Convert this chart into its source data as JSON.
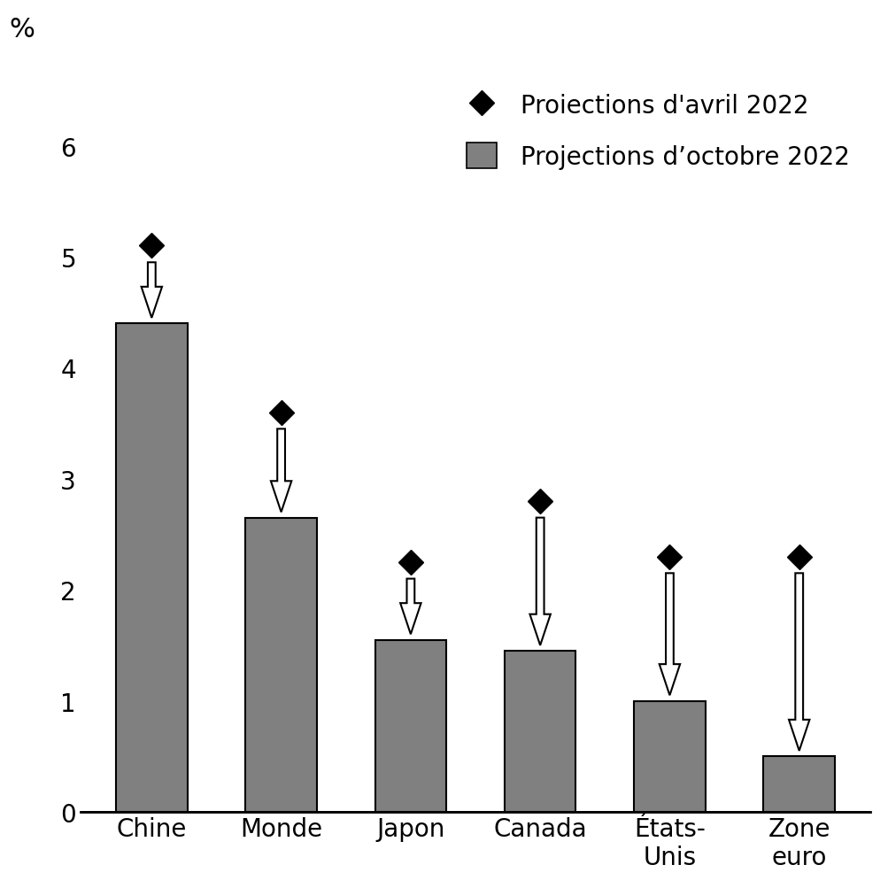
{
  "categories": [
    "Chine",
    "Monde",
    "Japon",
    "Canada",
    "États-\nUnis",
    "Zone\neuro"
  ],
  "bar_values": [
    4.4,
    2.65,
    1.55,
    1.45,
    1.0,
    0.5
  ],
  "april_values": [
    5.1,
    3.6,
    2.25,
    2.8,
    2.3,
    2.3
  ],
  "bar_color": "#808080",
  "bar_edgecolor": "#000000",
  "arrow_facecolor": "#ffffff",
  "arrow_edgecolor": "#000000",
  "diamond_color": "#000000",
  "ylim": [
    0,
    6.8
  ],
  "yticks": [
    0,
    1,
    2,
    3,
    4,
    5,
    6
  ],
  "ylabel": "%",
  "legend_april": "Proiections d'avril 2022",
  "legend_oct": "Projections d’octobre 2022",
  "background_color": "#ffffff",
  "tick_fontsize": 20,
  "label_fontsize": 22,
  "legend_fontsize": 20
}
